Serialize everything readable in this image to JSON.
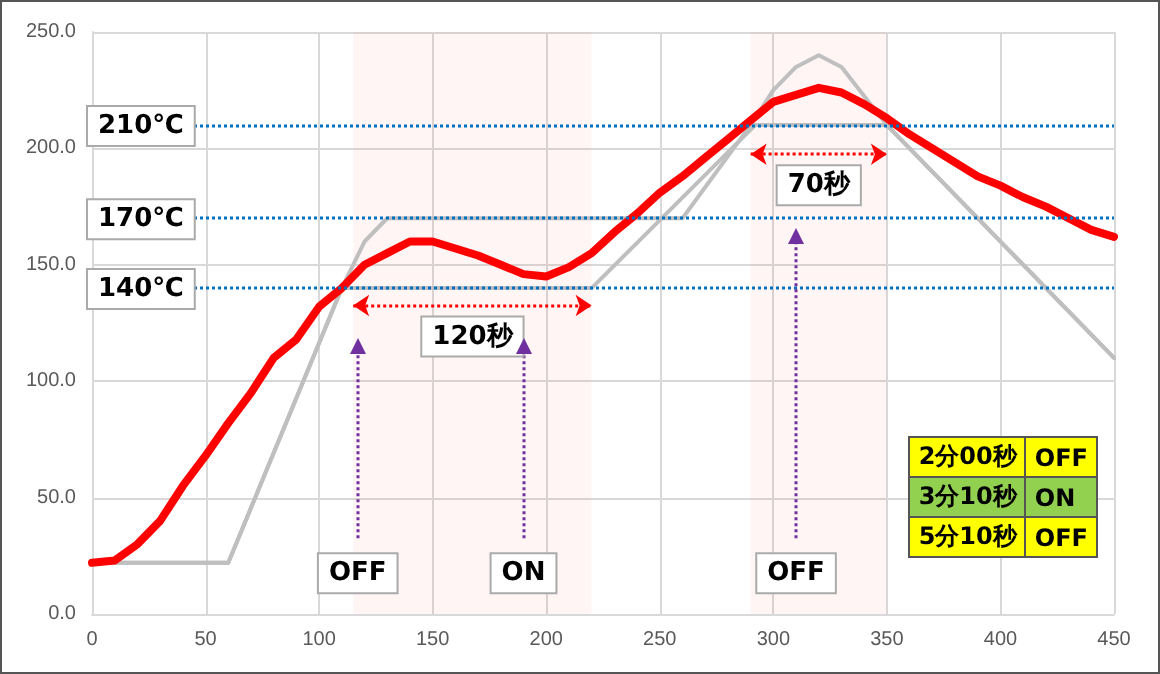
{
  "chart_data": {
    "type": "line",
    "x": [
      0,
      10,
      20,
      30,
      40,
      50,
      60,
      70,
      80,
      90,
      100,
      110,
      120,
      130,
      140,
      150,
      160,
      170,
      180,
      190,
      200,
      210,
      220,
      230,
      240,
      250,
      260,
      270,
      280,
      290,
      300,
      310,
      320,
      330,
      340,
      350,
      360,
      370,
      380,
      390,
      400,
      410,
      420,
      430,
      440,
      450
    ],
    "series": [
      {
        "color": "#bfbfbf",
        "x": [
          0,
          60,
          110,
          120,
          130,
          260,
          290,
          300,
          310,
          320,
          330,
          350,
          450
        ],
        "values": [
          22,
          22,
          140,
          160,
          170,
          170,
          210,
          225,
          235,
          240,
          235,
          210,
          110
        ]
      },
      {
        "color": "#bfbfbf",
        "x": [
          0,
          60,
          110,
          220,
          292,
          350,
          450
        ],
        "values": [
          22,
          22,
          140,
          140,
          210,
          210,
          110
        ]
      },
      {
        "color": "#ff0000",
        "values": [
          22,
          23,
          30,
          40,
          55,
          68,
          82,
          95,
          110,
          118,
          132,
          140,
          150,
          155,
          160,
          160,
          157,
          154,
          150,
          146,
          145,
          149,
          155,
          164,
          172,
          181,
          188,
          196,
          204,
          212,
          220,
          223,
          226,
          224,
          219,
          213,
          206,
          200,
          194,
          188,
          184,
          179,
          175,
          170,
          165,
          162
        ]
      }
    ],
    "xlim": [
      0,
      450
    ],
    "xticks": [
      0,
      50,
      100,
      150,
      200,
      250,
      300,
      350,
      400,
      450
    ],
    "ylim": [
      0,
      250
    ],
    "yticks": [
      {
        "value": 0,
        "label": "0.0"
      },
      {
        "value": 50,
        "label": "50.0"
      },
      {
        "value": 100,
        "label": "100.0"
      },
      {
        "value": 150,
        "label": "150.0"
      },
      {
        "value": 200,
        "label": "200.0"
      },
      {
        "value": 250,
        "label": "250.0"
      }
    ],
    "grid": true,
    "marker": "none",
    "line_style": "solid",
    "ref_lines": [
      {
        "axis": "y",
        "value": 210,
        "label": "210℃",
        "color": "#0070c0",
        "line_style": "dotted"
      },
      {
        "axis": "y",
        "value": 170,
        "label": "170℃",
        "color": "#0070c0",
        "line_style": "dotted"
      },
      {
        "axis": "y",
        "value": 140,
        "label": "140℃",
        "color": "#0070c0",
        "line_style": "dotted"
      },
      {
        "axis": "x",
        "value": 117,
        "label": "OFF",
        "color": "#7030a0",
        "line_style": "dotted"
      },
      {
        "axis": "x",
        "value": 190,
        "label": "ON",
        "color": "#7030a0",
        "line_style": "dotted"
      },
      {
        "axis": "x",
        "value": 310,
        "label": "OFF",
        "color": "#7030a0",
        "line_style": "dotted"
      }
    ],
    "bands": [
      {
        "axis": "x",
        "from": 115,
        "to": 220,
        "label": "120秒",
        "color": "#ff0000"
      },
      {
        "axis": "x",
        "from": 290,
        "to": 350,
        "label": "70秒",
        "color": "#ff0000"
      }
    ],
    "annotations": [
      "2分00秒",
      "OFF",
      "3分10秒",
      "ON",
      "5分10秒",
      "OFF"
    ]
  }
}
